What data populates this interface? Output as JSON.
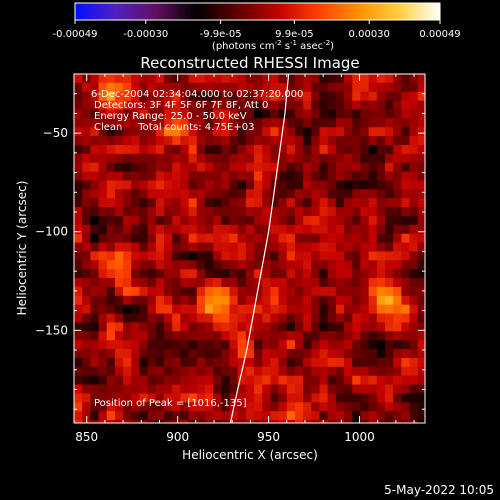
{
  "colorbar": {
    "tick_labels": [
      "-0.00049",
      "-0.00030",
      "-9.9e-05",
      "9.9e-05",
      "0.00030",
      "0.00049"
    ],
    "tick_values": [
      -0.00049,
      -0.0003,
      -9.9e-05,
      9.9e-05,
      0.0003,
      0.00049
    ],
    "range": [
      -0.00049,
      0.00049
    ],
    "units_main": "(photons cm",
    "units_exp1": "-2",
    "units_mid": " s",
    "units_exp2": "-1",
    "units_end": " asec",
    "units_exp3": "-2",
    "units_close": ")",
    "colors": [
      "#0010ff",
      "#5020c0",
      "#601060",
      "#000000",
      "#600000",
      "#c00000",
      "#ff4000",
      "#ff9000",
      "#ffd040",
      "#ffffff"
    ]
  },
  "chart_data": {
    "type": "heatmap",
    "title": "Reconstructed RHESSI Image",
    "xlabel": "Heliocentric X (arcsec)",
    "ylabel": "Heliocentric Y (arcsec)",
    "xlim": [
      843,
      1036
    ],
    "ylim": [
      -197,
      -20
    ],
    "x_ticks": [
      850,
      900,
      950,
      1000
    ],
    "y_ticks": [
      -50,
      -100,
      -150
    ],
    "limb_curve": [
      [
        961,
        -20
      ],
      [
        959,
        -40
      ],
      [
        956,
        -60
      ],
      [
        953,
        -80
      ],
      [
        950,
        -100
      ],
      [
        946,
        -120
      ],
      [
        942,
        -140
      ],
      [
        938,
        -160
      ],
      [
        933,
        -180
      ],
      [
        929,
        -197
      ]
    ],
    "hotspots": [
      {
        "x": 1016,
        "y": -135,
        "level": 1.0
      },
      {
        "x": 899,
        "y": -48,
        "level": 0.85
      },
      {
        "x": 866,
        "y": -120,
        "level": 0.65
      },
      {
        "x": 920,
        "y": -134,
        "level": 0.7
      },
      {
        "x": 938,
        "y": -165,
        "level": 0.7
      },
      {
        "x": 860,
        "y": -30,
        "level": 0.65
      },
      {
        "x": 872,
        "y": -158,
        "level": 0.55
      },
      {
        "x": 1003,
        "y": -175,
        "level": 0.55
      },
      {
        "x": 966,
        "y": -185,
        "level": 0.5
      }
    ],
    "annotations": {
      "time": "6-Dec-2004 02:34:04.000 to 02:37:20.000",
      "detectors": "Detectors: 3F 4F 5F 6F 7F 8F, Att 0",
      "energy": "Energy Range: 25.0 - 50.0 keV",
      "clean": "Clean     Total counts: 4.75E+03",
      "peak": "Position of Peak = [1016,-135]"
    }
  },
  "footer": {
    "date": "5-May-2022 10:05"
  }
}
